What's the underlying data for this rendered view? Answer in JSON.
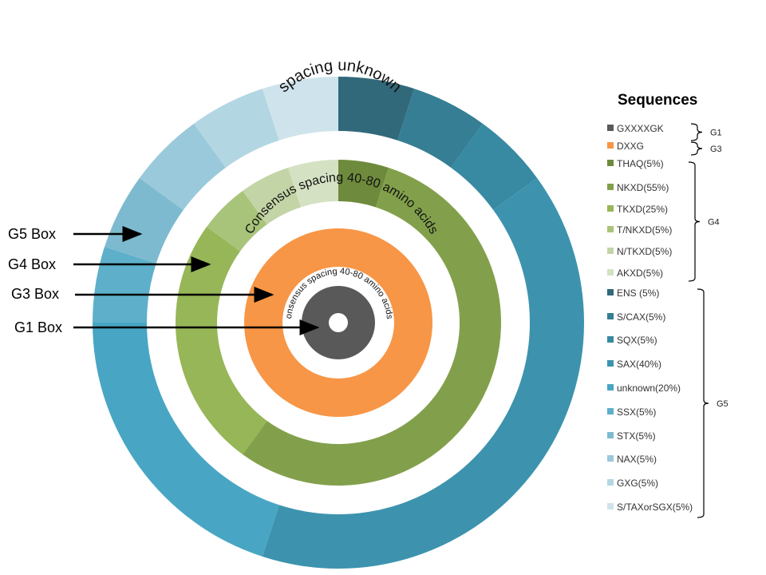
{
  "chart_data": {
    "type": "pie",
    "legend_title": "Sequences",
    "rings": [
      {
        "name": "G1 Box",
        "segments": [
          {
            "label": "GXXXXGK",
            "value": 100,
            "color": "#595959"
          }
        ]
      },
      {
        "name": "G3 Box",
        "segments": [
          {
            "label": "DXXG",
            "value": 100,
            "color": "#f79646"
          }
        ]
      },
      {
        "name": "G4 Box",
        "segments": [
          {
            "label": "THAQ(5%)",
            "value": 5,
            "color": "#6e8b3d"
          },
          {
            "label": "NKXD(55%)",
            "value": 55,
            "color": "#82a04b"
          },
          {
            "label": "TKXD(25%)",
            "value": 25,
            "color": "#96b658"
          },
          {
            "label": "T/NKXD(5%)",
            "value": 5,
            "color": "#a8c47a"
          },
          {
            "label": "N/TKXD(5%)",
            "value": 5,
            "color": "#c3d4a6"
          },
          {
            "label": "AKXD(5%)",
            "value": 5,
            "color": "#d5e1c3"
          }
        ]
      },
      {
        "name": "G5 Box",
        "segments": [
          {
            "label": "ENS (5%)",
            "value": 5,
            "color": "#31697b"
          },
          {
            "label": "S/CAX(5%)",
            "value": 5,
            "color": "#357e93"
          },
          {
            "label": "SQX(5%)",
            "value": 5,
            "color": "#3889a2"
          },
          {
            "label": "SAX(40%)",
            "value": 40,
            "color": "#3d93ae"
          },
          {
            "label": "unknown(20%)",
            "value": 20,
            "color": "#48a6c4"
          },
          {
            "label": "SSX(5%)",
            "value": 5,
            "color": "#5eb0ca"
          },
          {
            "label": "STX(5%)",
            "value": 5,
            "color": "#7dbad0"
          },
          {
            "label": "NAX(5%)",
            "value": 5,
            "color": "#99c9da"
          },
          {
            "label": "GXG(5%)",
            "value": 5,
            "color": "#b3d6e3"
          },
          {
            "label": "S/TAXorSGX(5%)",
            "value": 5,
            "color": "#cfe3ec"
          }
        ]
      }
    ],
    "annotations": {
      "outer_gap": "spacing unknown",
      "g4_inner": "Consensus spacing 40-80 amino acids",
      "g3_inner": "Consensus spacing 40-80 amino acids"
    },
    "box_labels": [
      "G5 Box",
      "G4 Box",
      "G3 Box",
      "G1 Box"
    ],
    "legend_groups": [
      "G1",
      "G3",
      "G4",
      "G5"
    ],
    "legend_placement": "right"
  }
}
